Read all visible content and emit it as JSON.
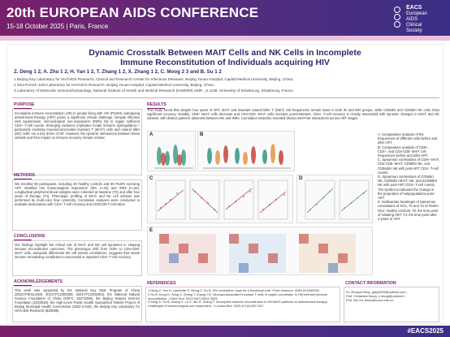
{
  "conference": {
    "title": "20th EUROPEAN AIDS CONFERENCE",
    "dates": "15-18 October 2025 | Paris, France",
    "footer_tag": "#EACS2025"
  },
  "eacs_logo": {
    "name": "EACS",
    "line1": "European",
    "line2": "AIDS",
    "line3": "Clinical",
    "line4": "Society"
  },
  "paper": {
    "title_line1": "Dynamic Crosstalk Between MAIT Cells and NK Cells in Incomplete",
    "title_line2": "Immune Reconstitution of Individuals acquiring HIV",
    "authors": "Z. Deng 1 2, A. Zhu 1 2, H. Yan 1 2, T. Zhang 1 2, X. Zhang 1 2, C. Moog 2 3 and B. Su 1 2",
    "affiliations": [
      "1 Beijing Key Laboratory for HIV/AIDS Research, Clinical and Research Center for Infectious Diseases, Beijing Youan Hospital, Capital Medical University, Beijing, China;",
      "2 Sino-French Joint Laboratory for HIV/AIDS Research, Beijing Youan Hospital, Capital Medical University, Beijing, China ;",
      "3 Laboratory of Molecular Immunorhumatology, National Institute of Health and Medical Research (INSERM) UMR _S 1109, University of Strasbourg, Strasbourg, France"
    ]
  },
  "sections": {
    "purpose": {
      "heading": "PURPOSE",
      "text": "Incomplete immune reconstitution (IIR) in people living with HIV (PLWH) undergoing antiretroviral therapy (ART) poses a significant clinical challenge. Despite effective viral suppression, immunological non-responders (INRs) fail to regain sufficient CD4+ T-cell counts. Emerging evidence implicates innate immune dysregulation—particularly involving mucosal-associated invariant T (MAIT) cells and natural killer (NK) cells—as a key driver of IIR. However, the dynamic interactions between these subsets and their impact on immune recovery remain unclear."
    },
    "methods": {
      "heading": "METHODS",
      "text": "We enrolled 89 participants, including 29 healthy controls and 60 PLWH receiving ART, stratified into immunological responders (IRs, n=34) and INRs (n=26). Longitudinal peripheral blood samples were collected at baseline (T0) and after four years of therapy (T4). Phenotypic profiling of MAIT and NK cell subsets was performed by multi-color flow cytometry. Correlation analyses were conducted to evaluate associations with CD4+ T-cell recovery and CD4/CD8 T-cell ratios."
    },
    "conclusions": {
      "heading": "CONCLUSIONS",
      "text": "Our findings highlight the critical role of MAIT and NK cell dynamics in shaping immune reconstitution outcomes. The phenotypic shift from CD8+ to CD4-CD8- MAIT cells, alongside differential NK cell subset correlations, suggests that innate immune remodeling contributes to successful or impaired CD4+ T-cell recovery."
    },
    "acknowledgements": {
      "heading": "ACKNOWLEDGEMENTS",
      "text": "This work was supported by the National Key R&D Program of China (2022YFE0114300, 2021YFC2300300, 2021YFC2300302), the National Natural Science Foundation of China (NSFC, 82472266), the Beijing Natural Science Foundation (Z220018), the High-Level Public Health Specialized Talents Project of Beijing Municipal Health Commission (2022-2-018), the Beijing Key Laboratory for HIV/AIDS Research (BZ0089)."
    },
    "results": {
      "heading": "RESULTS",
      "text": "This study found that despite four years of ART, MAIT and invariant natural killer T (iNKT) cell frequencies remain lower in both IR and INR groups, while CD56bri and CD56bri NK cells show significant recovery. Notably, CD8+ MAIT cells decrease and CD4-CD8- MAIT cells increase post-treatment. CD4+ T-cell recovery is closely associated with dynamic changes in MAIT and NK subsets, with distinct patterns observed between IRs and INRs. Correlation networks revealed distinct MAIT-NK interactions across ART stages."
    },
    "references": {
      "heading": "REFERENCES",
      "items": [
        "1 Deng Z, Yan H, Lambotte O, Moog C, Su B, HIV controllers: hope for a functional cure. Front Immunol. 2025;16:1540932.",
        "2 Su B, Kong D, Song X, Zhang T, Kuang YQ. Mucosal-associated invariant T cells: A cryptic coordinator in HIV-infected immune reconstitution. J Med Virol. 2022;94(7):3043-3053.",
        "3 Song X, Su B, Zhang X, Lu X, Wu H, Zhang T. Incomplete immune reconstitution in HIV/AIDS patients on antiretroviral therapy: Challenges of immunological non-responders. J Leukoc Biol. 2020;107(4):597-612."
      ]
    },
    "contact": {
      "heading": "CONTACT INFORMATION",
      "items": [
        "Dr. Zhuoya Deng, gaby2006@outlook.com ;",
        "Prof. Christiane Moog, c.moog@unistra.fr ;",
        "Prof. Bin Su, binsu@ccmu.edu.cn"
      ]
    }
  },
  "figure_legend": {
    "A": "A. Comparative analysis of the frequencies of different cells before and after ART.",
    "B": "B. Comparative analysis of CD8+, CD4+, and CD4-CD8- MAIT cell frequencies before and after ART.",
    "C": "C. Spearman correlations of CD8+ MAIT, CD4-CD8- MAIT, CD56bri NK, and CD56dim NK with post-ART CD4+ T-cell counts.",
    "D": "D. Spearman correlations of CD56bri NK, CD56dim MAIT, NK, and ΔCD56bri NK with post-ART CD4+ T-cell counts. The symbol Δ indicates the change in the proportion of subpopulations post-ART.",
    "E": "E. Multivariate heatmaps of Spearman correlations of HCs, T0 and T4 of PLWH. HCs: healthy controls; T0: the time point of initiating ART; T4: the time point after 4 years of ART."
  },
  "panels": [
    "A",
    "B",
    "C",
    "D",
    "E"
  ],
  "colors": {
    "brand": "#7a1f6a",
    "navy": "#2d2a6b",
    "teal": "#2b8e7a",
    "red": "#c0392b",
    "orange": "#e58f3d",
    "blue": "#3d6fb5"
  }
}
